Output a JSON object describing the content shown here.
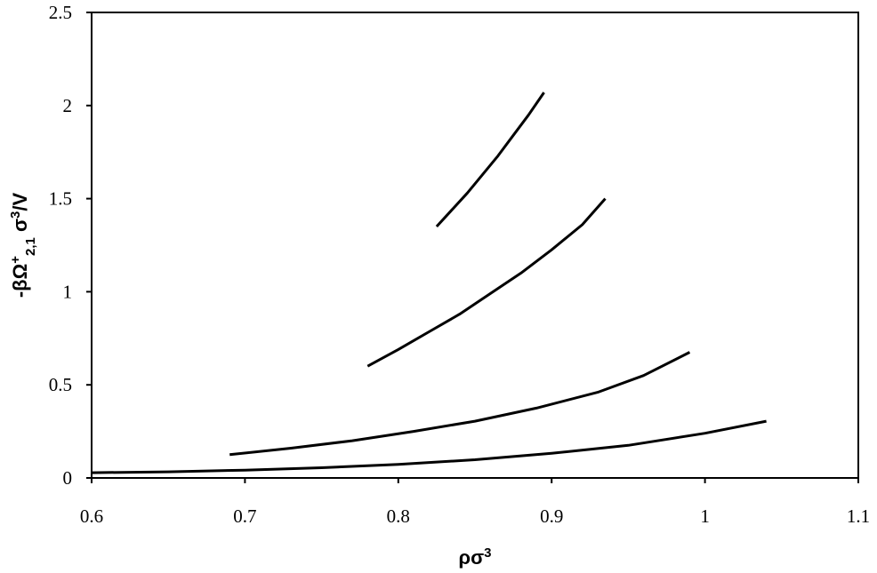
{
  "chart_data": {
    "type": "line",
    "title": "",
    "xlabel": {
      "base": "ρσ",
      "sup": "3"
    },
    "ylabel": {
      "main": "-βΩ",
      "sup": "+",
      "sub": "2,1",
      "tail": " σ",
      "tail_sup": "3",
      "end": "/V"
    },
    "xlim": [
      0.6,
      1.1
    ],
    "ylim": [
      0,
      2.5
    ],
    "xticks": [
      0.6,
      0.7,
      0.8,
      0.9,
      1.0,
      1.1
    ],
    "xtick_labels": [
      "0.6",
      "0.7",
      "0.8",
      "0.9",
      "1",
      "1.1"
    ],
    "yticks": [
      0,
      0.5,
      1.0,
      1.5,
      2.0,
      2.5
    ],
    "ytick_labels": [
      "0",
      "0.5",
      "1",
      "1.5",
      "2",
      "2.5"
    ],
    "grid": false,
    "line_color": "#000000",
    "series": [
      {
        "x": [
          0.6,
          0.65,
          0.7,
          0.75,
          0.8,
          0.85,
          0.9,
          0.95,
          1.0,
          1.04
        ],
        "y": [
          0.028,
          0.033,
          0.042,
          0.055,
          0.073,
          0.098,
          0.132,
          0.175,
          0.24,
          0.305
        ]
      },
      {
        "x": [
          0.69,
          0.73,
          0.77,
          0.81,
          0.85,
          0.89,
          0.93,
          0.96,
          0.99
        ],
        "y": [
          0.125,
          0.16,
          0.2,
          0.25,
          0.305,
          0.375,
          0.46,
          0.55,
          0.675
        ]
      },
      {
        "x": [
          0.78,
          0.8,
          0.82,
          0.84,
          0.86,
          0.88,
          0.9,
          0.92,
          0.935
        ],
        "y": [
          0.6,
          0.69,
          0.785,
          0.88,
          0.99,
          1.1,
          1.225,
          1.36,
          1.5
        ]
      },
      {
        "x": [
          0.825,
          0.835,
          0.845,
          0.855,
          0.865,
          0.875,
          0.885,
          0.895
        ],
        "y": [
          1.35,
          1.44,
          1.53,
          1.63,
          1.73,
          1.84,
          1.95,
          2.07
        ]
      }
    ]
  }
}
